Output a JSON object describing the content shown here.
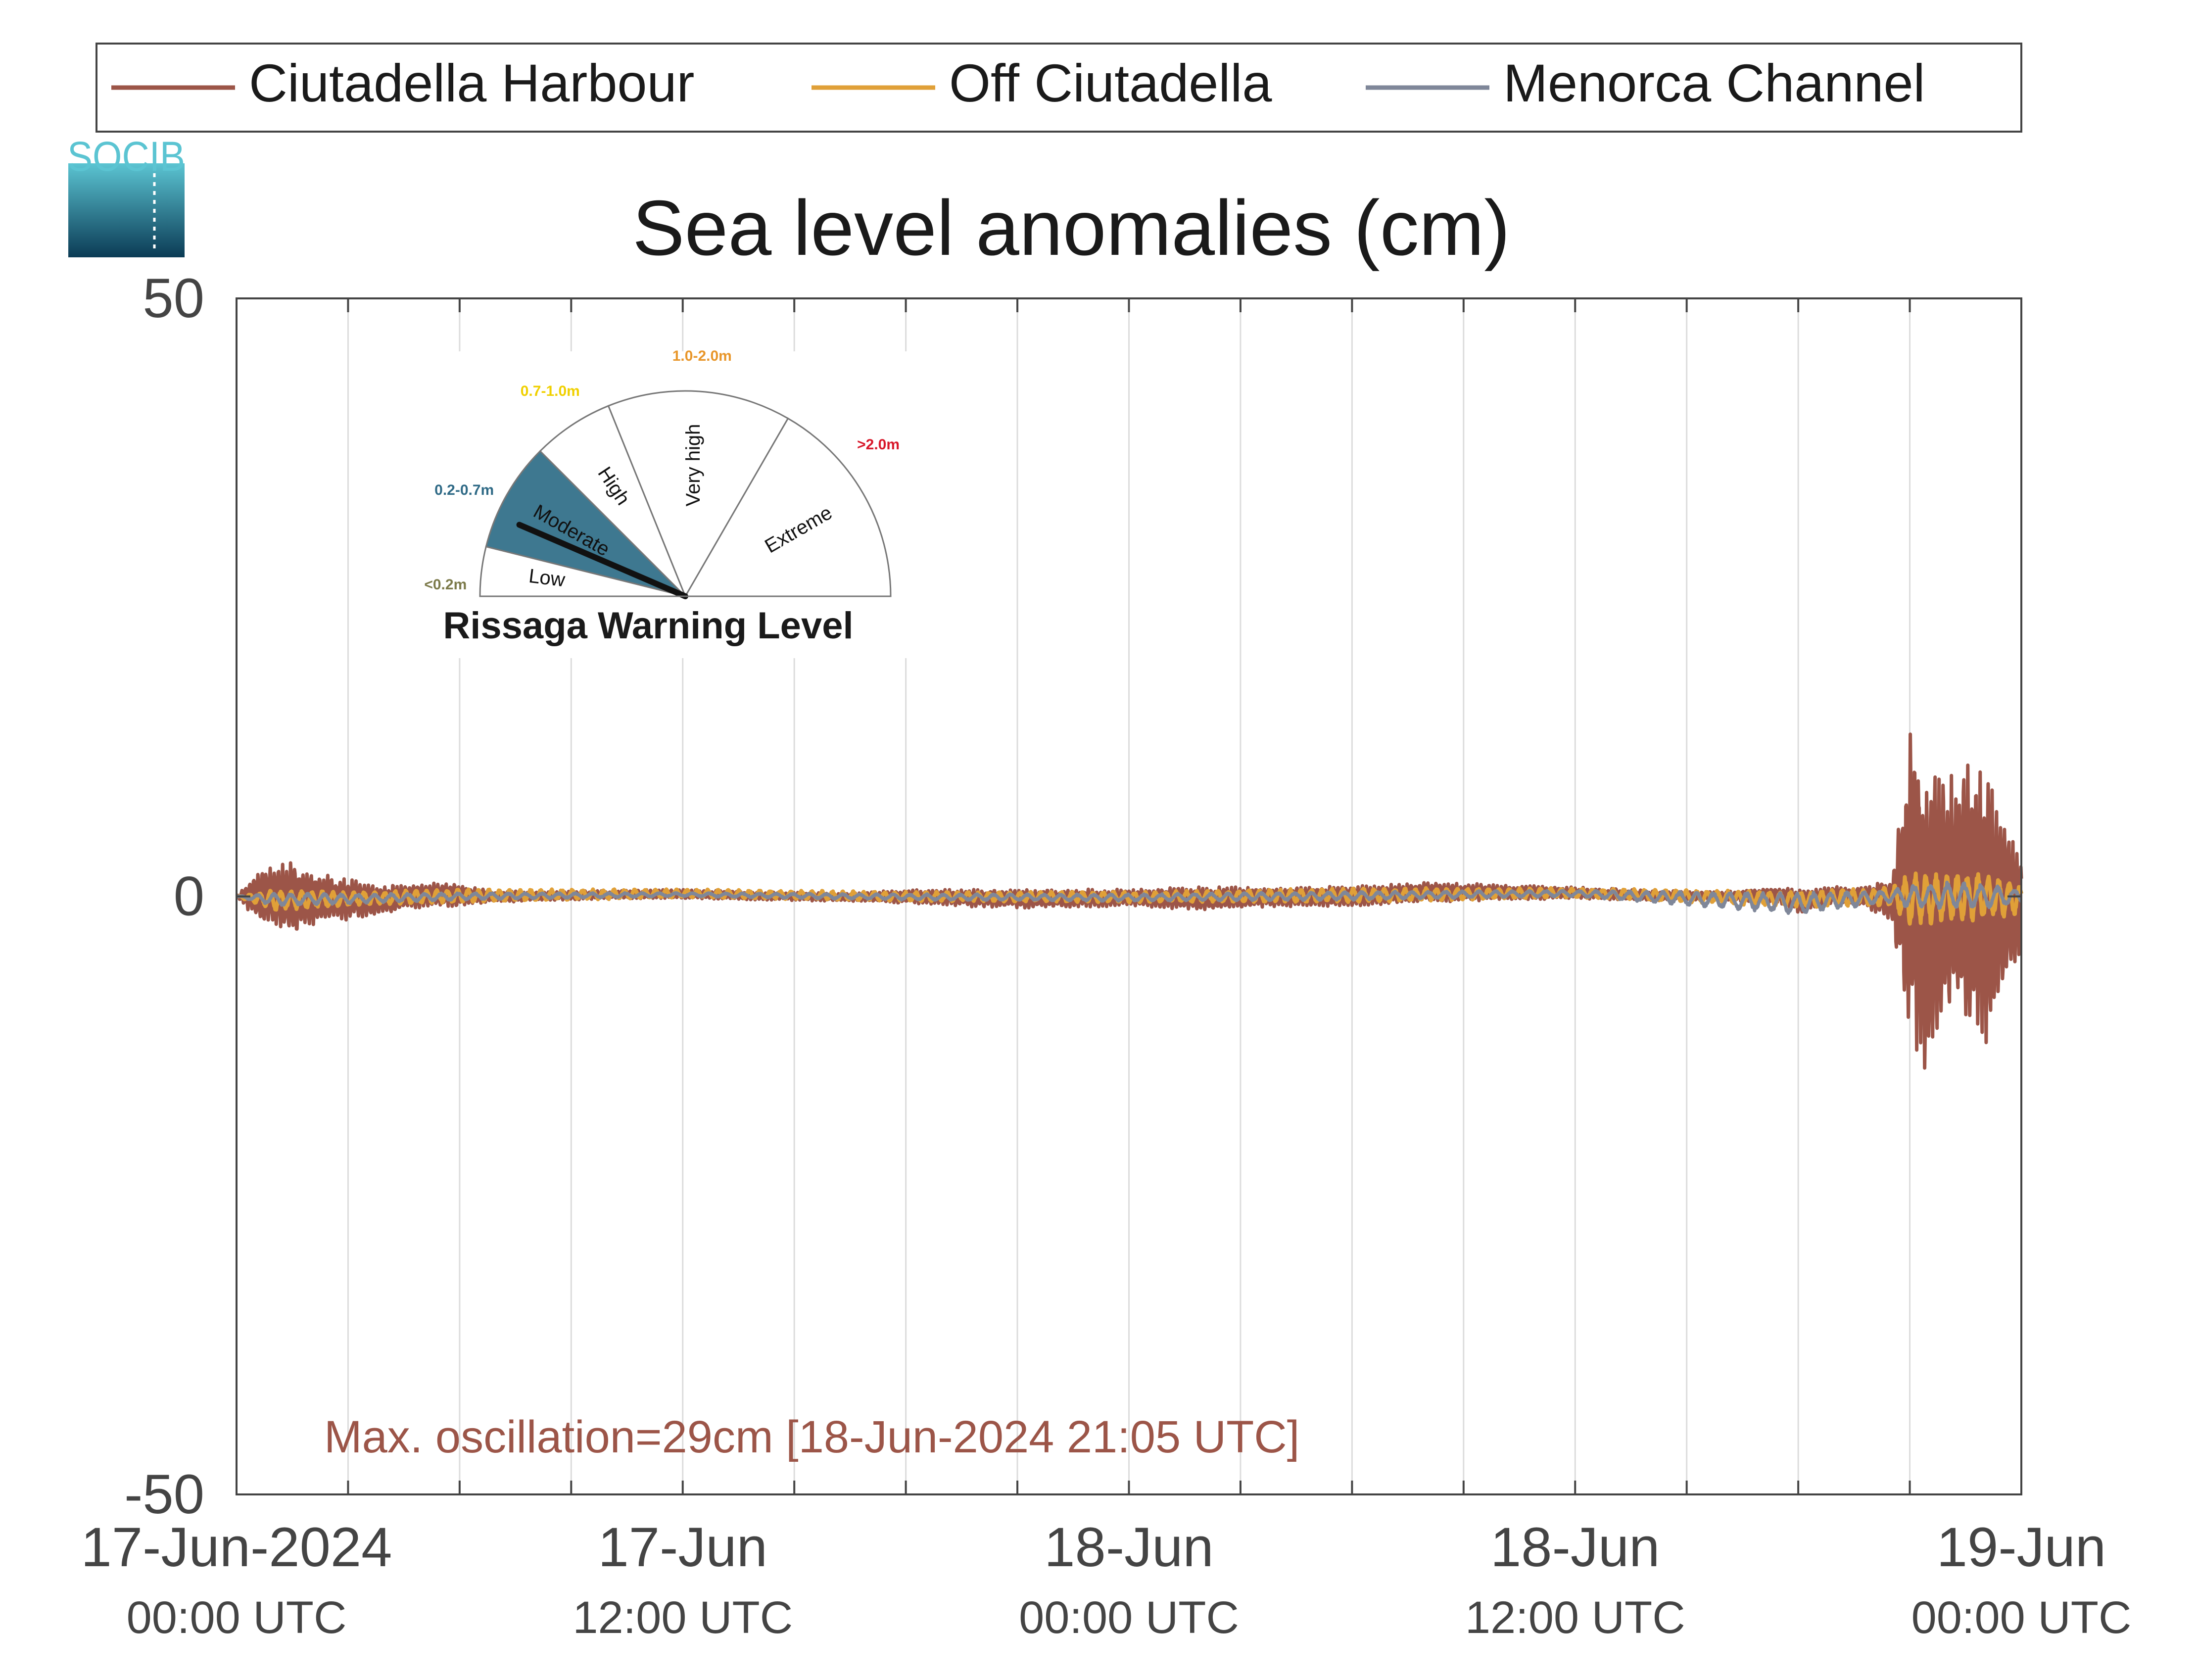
{
  "logo_text": "SOCIB",
  "colors": {
    "ciutadella_harbour": "#9c5548",
    "off_ciutadella": "#e0a038",
    "menorca_channel": "#7f8799",
    "grid": "#dcdcdc",
    "axis": "#444444",
    "logo_top": "#5bc4d2",
    "logo_bottom": "#0b3b55",
    "moderate_fill": "#3e7890",
    "label_low": "#7c7a4a",
    "label_moderate": "#2f6a86",
    "label_high": "#f0d000",
    "label_very_high": "#e8962a",
    "label_extreme": "#d8182a"
  },
  "warning_gauge": {
    "title": "Rissaga Warning Level",
    "current_level": "Moderate",
    "levels": [
      {
        "name": "Low",
        "range": "<0.2m"
      },
      {
        "name": "Moderate",
        "range": "0.2-0.7m"
      },
      {
        "name": "High",
        "range": "0.7-1.0m"
      },
      {
        "name": "Very high",
        "range": "1.0-2.0m"
      },
      {
        "name": "Extreme",
        "range": ">2.0m"
      }
    ]
  },
  "chart_data": {
    "type": "line",
    "title": "Sea level anomalies (cm)",
    "ylim": [
      -50,
      50
    ],
    "yticks": [
      -50,
      0,
      50
    ],
    "xlim_hours": [
      0,
      48
    ],
    "grid": "vertical lines every 3 hours",
    "legend_position": "top",
    "xticks": [
      {
        "hour": 0,
        "line1": "17-Jun-2024",
        "line2": "00:00 UTC"
      },
      {
        "hour": 12,
        "line1": "17-Jun",
        "line2": "12:00 UTC"
      },
      {
        "hour": 24,
        "line1": "18-Jun",
        "line2": "00:00 UTC"
      },
      {
        "hour": 36,
        "line1": "18-Jun",
        "line2": "12:00 UTC"
      },
      {
        "hour": 48,
        "line1": "19-Jun",
        "line2": "00:00 UTC"
      }
    ],
    "annotation": "Max. oscillation=29cm [18-Jun-2024 21:05 UTC]",
    "series": [
      {
        "name": "Ciutadella Harbour",
        "color": "#9c5548",
        "envelope": [
          {
            "hour": 0,
            "max": 0,
            "min": 0
          },
          {
            "hour": 0.5,
            "max": 2,
            "min": -2
          },
          {
            "hour": 1.0,
            "max": 2.5,
            "min": -2.5
          },
          {
            "hour": 1.5,
            "max": 3,
            "min": -3.5
          },
          {
            "hour": 2.0,
            "max": 2.2,
            "min": -2.5
          },
          {
            "hour": 3.0,
            "max": 1.5,
            "min": -2
          },
          {
            "hour": 4.0,
            "max": 1,
            "min": -1.5
          },
          {
            "hour": 5.0,
            "max": 1.2,
            "min": -1
          },
          {
            "hour": 6.0,
            "max": 1,
            "min": -0.8
          },
          {
            "hour": 7.0,
            "max": 0.5,
            "min": -0.5
          },
          {
            "hour": 8.0,
            "max": 0.4,
            "min": -0.4
          },
          {
            "hour": 10.0,
            "max": 0.5,
            "min": -0.2
          },
          {
            "hour": 12.0,
            "max": 0.6,
            "min": -0.2
          },
          {
            "hour": 14.0,
            "max": 0.4,
            "min": -0.3
          },
          {
            "hour": 16.0,
            "max": 0.3,
            "min": -0.4
          },
          {
            "hour": 18.0,
            "max": 0.6,
            "min": -0.6
          },
          {
            "hour": 20.0,
            "max": 0.6,
            "min": -0.9
          },
          {
            "hour": 21.0,
            "max": 0.6,
            "min": -1
          },
          {
            "hour": 22.0,
            "max": 0.6,
            "min": -1
          },
          {
            "hour": 24.0,
            "max": 0.6,
            "min": -0.8
          },
          {
            "hour": 26.0,
            "max": 0.8,
            "min": -1.2
          },
          {
            "hour": 28.0,
            "max": 0.8,
            "min": -0.9
          },
          {
            "hour": 30.0,
            "max": 0.9,
            "min": -0.9
          },
          {
            "hour": 32.0,
            "max": 1.2,
            "min": -0.5
          },
          {
            "hour": 34.0,
            "max": 1,
            "min": -0.3
          },
          {
            "hour": 36.0,
            "max": 0.8,
            "min": -0.2
          },
          {
            "hour": 38.0,
            "max": 0.5,
            "min": -0.4
          },
          {
            "hour": 40.0,
            "max": 0.4,
            "min": -0.3
          },
          {
            "hour": 41.5,
            "max": 0.8,
            "min": -0.6
          },
          {
            "hour": 42.0,
            "max": 0.6,
            "min": -1.5
          },
          {
            "hour": 43.0,
            "max": 0.8,
            "min": -0.5
          },
          {
            "hour": 44.0,
            "max": 1,
            "min": -1.2
          },
          {
            "hour": 44.5,
            "max": 1.5,
            "min": -2
          },
          {
            "hour": 45.0,
            "max": 14.5,
            "min": -12.5
          },
          {
            "hour": 45.5,
            "max": 11,
            "min": -15
          },
          {
            "hour": 46.0,
            "max": 10,
            "min": -10
          },
          {
            "hour": 46.5,
            "max": 12,
            "min": -11
          },
          {
            "hour": 47.0,
            "max": 11,
            "min": -13
          },
          {
            "hour": 47.5,
            "max": 7,
            "min": -9
          },
          {
            "hour": 48.0,
            "max": 4,
            "min": -5
          }
        ]
      },
      {
        "name": "Off Ciutadella",
        "color": "#e0a038",
        "envelope": [
          {
            "hour": 0,
            "max": 0,
            "min": 0
          },
          {
            "hour": 1,
            "max": 0.6,
            "min": -1.2
          },
          {
            "hour": 3,
            "max": 0.4,
            "min": -0.8
          },
          {
            "hour": 6,
            "max": 0.6,
            "min": -0.5
          },
          {
            "hour": 12,
            "max": 0.6,
            "min": -0.1
          },
          {
            "hour": 18,
            "max": 0.4,
            "min": -0.4
          },
          {
            "hour": 24,
            "max": 0.4,
            "min": -0.5
          },
          {
            "hour": 30,
            "max": 0.7,
            "min": -0.5
          },
          {
            "hour": 36,
            "max": 0.7,
            "min": -0.1
          },
          {
            "hour": 42,
            "max": 0.4,
            "min": -0.9
          },
          {
            "hour": 44.5,
            "max": 0.8,
            "min": -0.8
          },
          {
            "hour": 45,
            "max": 2,
            "min": -2.5
          },
          {
            "hour": 46,
            "max": 2,
            "min": -2.2
          },
          {
            "hour": 47,
            "max": 2,
            "min": -2
          },
          {
            "hour": 48,
            "max": 1,
            "min": -1.5
          }
        ]
      },
      {
        "name": "Menorca Channel",
        "color": "#7f8799",
        "envelope": [
          {
            "hour": 0,
            "max": 0,
            "min": 0
          },
          {
            "hour": 1,
            "max": 0.3,
            "min": -0.8
          },
          {
            "hour": 3,
            "max": 0.2,
            "min": -0.6
          },
          {
            "hour": 6,
            "max": 0.3,
            "min": -0.3
          },
          {
            "hour": 12,
            "max": 0.3,
            "min": 0
          },
          {
            "hour": 18,
            "max": 0.2,
            "min": -0.3
          },
          {
            "hour": 24,
            "max": 0.2,
            "min": -0.4
          },
          {
            "hour": 30,
            "max": 0.4,
            "min": -0.3
          },
          {
            "hour": 36,
            "max": 0.5,
            "min": 0
          },
          {
            "hour": 42,
            "max": 0.3,
            "min": -1.5
          },
          {
            "hour": 44.5,
            "max": 0.5,
            "min": -0.5
          },
          {
            "hour": 45,
            "max": 1,
            "min": -1
          },
          {
            "hour": 46,
            "max": 1.2,
            "min": -1
          },
          {
            "hour": 47,
            "max": 1,
            "min": -1
          },
          {
            "hour": 48,
            "max": 0.6,
            "min": -0.6
          }
        ]
      }
    ]
  }
}
